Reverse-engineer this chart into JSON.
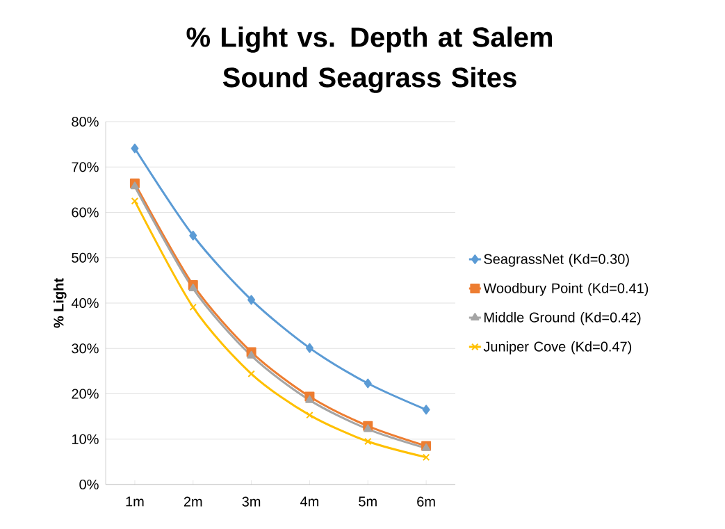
{
  "chart_data": {
    "type": "line",
    "title": "% Light vs. Depth at Salem Sound Seagrass Sites",
    "ylabel": "% Light",
    "categories": [
      "1m",
      "2m",
      "3m",
      "4m",
      "5m",
      "6m"
    ],
    "series": [
      {
        "name": "SeagrassNet (Kd=0.30)",
        "color": "#5b9bd5",
        "marker": "diamond",
        "values": [
          74.1,
          54.9,
          40.7,
          30.1,
          22.3,
          16.5
        ]
      },
      {
        "name": "Woodbury Point (Kd=0.41)",
        "color": "#ed7d31",
        "marker": "square",
        "values": [
          66.4,
          44.0,
          29.2,
          19.4,
          12.9,
          8.5
        ]
      },
      {
        "name": "Middle Ground (Kd=0.42)",
        "color": "#a5a5a5",
        "marker": "triangle",
        "values": [
          65.7,
          43.2,
          28.4,
          18.6,
          12.2,
          8.0
        ]
      },
      {
        "name": "Juniper Cove (Kd=0.47)",
        "color": "#ffc000",
        "marker": "cross",
        "values": [
          62.5,
          39.1,
          24.4,
          15.3,
          9.5,
          6.0
        ]
      }
    ],
    "ylim": [
      0,
      80
    ],
    "yticks": [
      {
        "value": 0,
        "label": "0%"
      },
      {
        "value": 10,
        "label": "10%"
      },
      {
        "value": 20,
        "label": "20%"
      },
      {
        "value": 30,
        "label": "30%"
      },
      {
        "value": 40,
        "label": "40%"
      },
      {
        "value": 50,
        "label": "50%"
      },
      {
        "value": 60,
        "label": "60%"
      },
      {
        "value": 70,
        "label": "70%"
      },
      {
        "value": 80,
        "label": "80%"
      }
    ],
    "grid": "y",
    "legend": "right",
    "line_style": "solid"
  }
}
